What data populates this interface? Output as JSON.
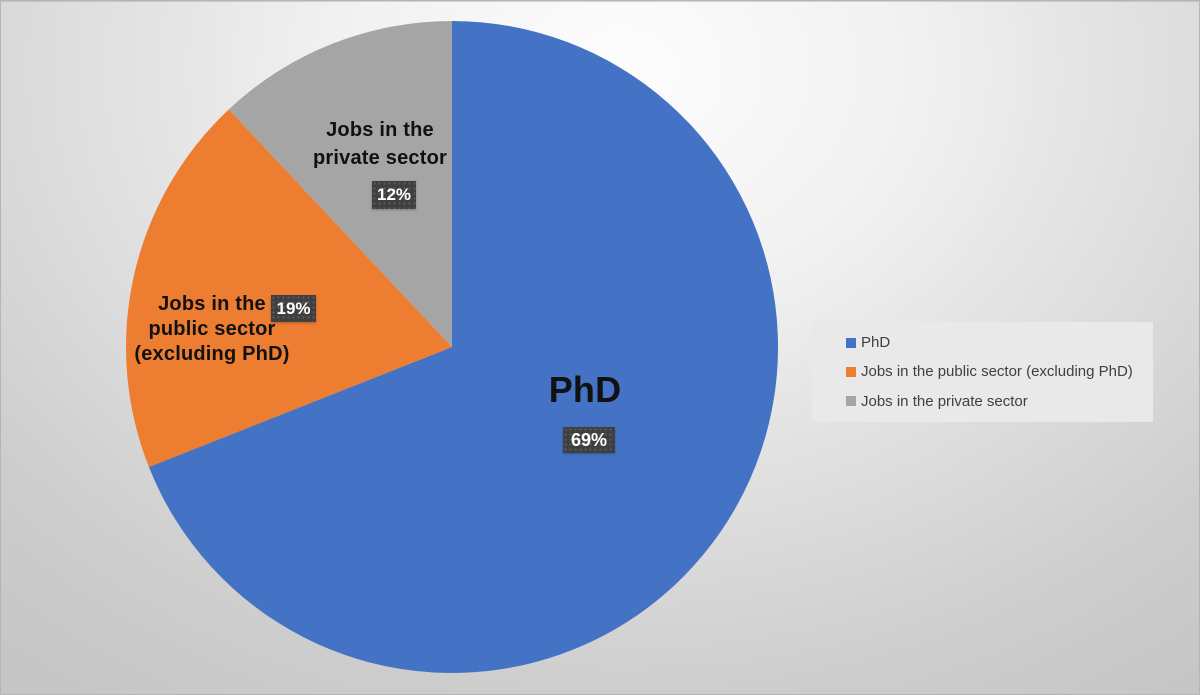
{
  "chart_data": {
    "type": "pie",
    "title": "",
    "labels": [
      "PhD",
      "Jobs in the public sector (excluding PhD)",
      "Jobs in the private sector"
    ],
    "values": [
      69,
      19,
      12
    ],
    "data_labels": [
      "69%",
      "19%",
      "12%"
    ],
    "colors": [
      "#4472C4",
      "#ED7D31",
      "#A5A5A5"
    ],
    "start_angle_deg": 0,
    "direction": "clockwise",
    "legend_position": "right",
    "background": "#d9d9d9",
    "label_chip_color": "#3f3f3f"
  },
  "callouts": {
    "phd": {
      "line1": "PhD",
      "pct": "69%"
    },
    "public_sector": {
      "line1": "Jobs in the",
      "line2": "public sector",
      "line3": "(excluding PhD)",
      "pct": "19%"
    },
    "private_sector": {
      "line1": "Jobs in the",
      "line2": "private sector",
      "pct": "12%"
    }
  },
  "legend": {
    "items": [
      {
        "label": "PhD",
        "color": "#4472C4"
      },
      {
        "label": "Jobs in the public sector (excluding PhD)",
        "color": "#ED7D31"
      },
      {
        "label": "Jobs in the private sector",
        "color": "#A5A5A5"
      }
    ]
  }
}
